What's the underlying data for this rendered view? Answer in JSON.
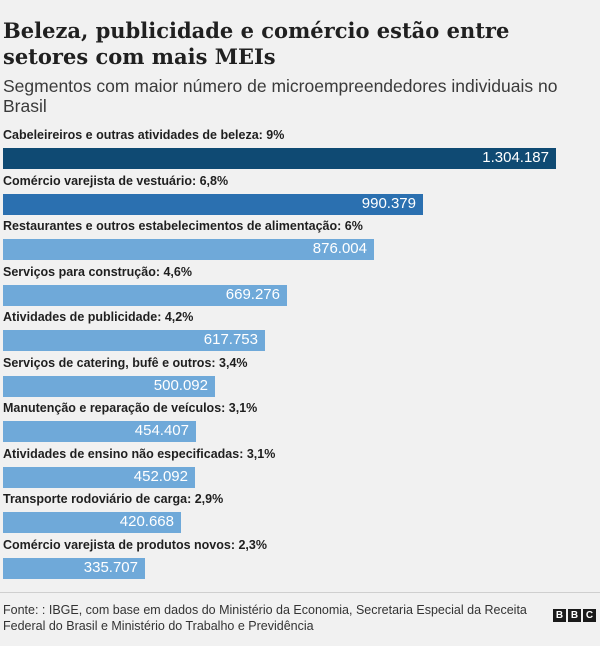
{
  "title": "Beleza, publicidade e comércio estão entre setores com mais MEIs",
  "subtitle": "Segmentos com maior número de microempreendedores individuais no Brasil",
  "source": "Fonte: : IBGE, com base em dados do Ministério da Economia, Secretaria Especial da Receita Federal do Brasil e Ministério do Trabalho e Previdência",
  "logo": {
    "letters": [
      "B",
      "B",
      "C"
    ]
  },
  "colors": {
    "top_bar": "#0f4a73",
    "second_bar": "#2b70b0",
    "other_bars": "#6fa9d9",
    "value_text": "#ffffff"
  },
  "chart_data": {
    "type": "bar",
    "orientation": "horizontal",
    "title": "Beleza, publicidade e comércio estão entre setores com mais MEIs",
    "subtitle": "Segmentos com maior número de microempreendedores individuais no Brasil",
    "categories": [
      "Cabeleireiros e outras atividades de beleza: 9%",
      "Comércio varejista de vestuário: 6,8%",
      "Restaurantes e outros estabelecimentos de alimentação: 6%",
      "Serviços para construção: 4,6%",
      "Atividades de publicidade: 4,2%",
      "Serviços de catering, bufê e outros: 3,4%",
      "Manutenção e reparação de veículos: 3,1%",
      "Atividades de ensino não especificadas: 3,1%",
      "Transporte rodoviário de carga: 2,9%",
      "Comércio varejista de produtos novos: 2,3%"
    ],
    "values": [
      1304187,
      990379,
      876004,
      669276,
      617753,
      500092,
      454407,
      452092,
      420668,
      335707
    ],
    "value_labels": [
      "1.304.187",
      "990.379",
      "876.004",
      "669.276",
      "617.753",
      "500.092",
      "454.407",
      "452.092",
      "420.668",
      "335.707"
    ],
    "xlim": [
      0,
      1304187
    ],
    "grid": false,
    "legend": "none"
  }
}
